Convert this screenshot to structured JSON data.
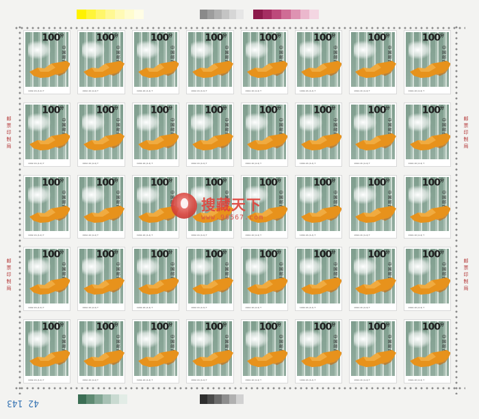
{
  "sheet": {
    "stamp_count": 40,
    "stamp": {
      "denomination": "100",
      "denomination_suffix": "分",
      "country": "中国邮政",
      "code": "1992-16 (4-4) T"
    },
    "margin_inscription": "邮票印制局",
    "sheet_number": "42 143",
    "colors": {
      "jade_green": "#8fa99a",
      "crystal_orange": "#e7921c",
      "watermark_red": "#e0453d"
    },
    "color_bars": {
      "top_left": [
        "#fff200",
        "#fff53a",
        "#fff66a",
        "#fff893",
        "#fffab5",
        "#fffccf",
        "#fffde5"
      ],
      "top_mid": [
        "#8a8a8a",
        "#9d9d9d",
        "#b0b0b0",
        "#c4c4c4",
        "#d6d6d6",
        "#e6e6e6"
      ],
      "top_right": [
        "#8c1a4b",
        "#a52e62",
        "#bd4a7b",
        "#cf6c95",
        "#de93b2",
        "#ebb8cd",
        "#f4d6e2"
      ],
      "bottom_left": [
        "#3b6e54",
        "#5e8a72",
        "#82a693",
        "#a7c1b4",
        "#c9dad1",
        "#e2ece6"
      ],
      "bottom_mid": [
        "#2e2e2e",
        "#4a4a4a",
        "#6b6b6b",
        "#8d8d8d",
        "#b0b0b0",
        "#d1d1d1"
      ]
    }
  },
  "watermark": {
    "title": "搜藏天下",
    "url": "www.96567.com"
  }
}
